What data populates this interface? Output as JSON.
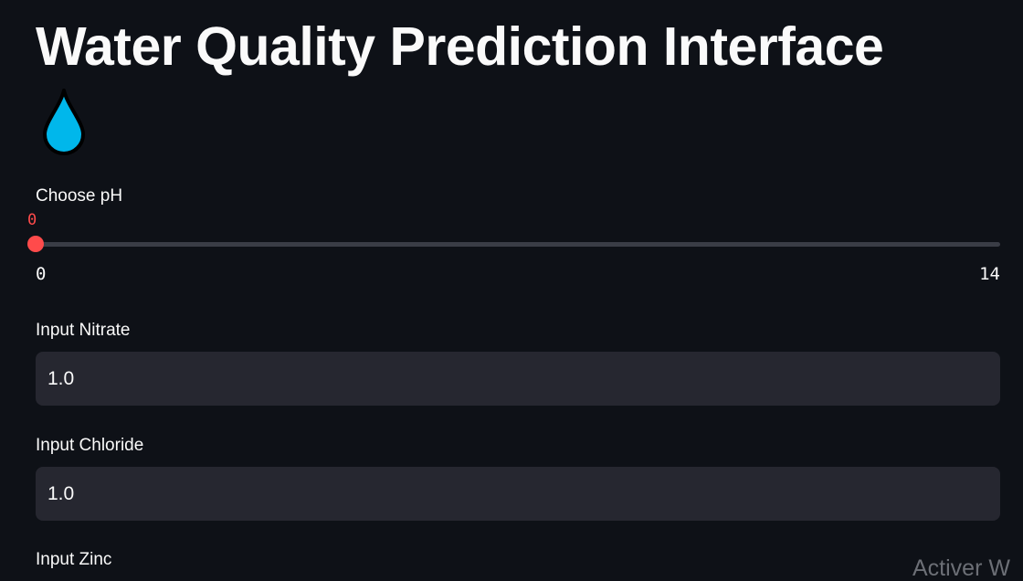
{
  "page": {
    "title": "Water Quality Prediction Interface",
    "title_icon": "water-drop-icon"
  },
  "ph_slider": {
    "label": "Choose pH",
    "value": 0,
    "value_display": "0",
    "min": 0,
    "max": 14,
    "min_label": "0",
    "max_label": "14",
    "accent_color": "#ff4b4b"
  },
  "nitrate": {
    "label": "Input Nitrate",
    "value": "1.0"
  },
  "chloride": {
    "label": "Input Chloride",
    "value": "1.0"
  },
  "zinc": {
    "label": "Input Zinc"
  },
  "watermark": {
    "text": "Activer W"
  },
  "colors": {
    "background": "#0e1117",
    "input_background": "#262730",
    "accent": "#ff4b4b",
    "drop": "#00b7eb"
  }
}
